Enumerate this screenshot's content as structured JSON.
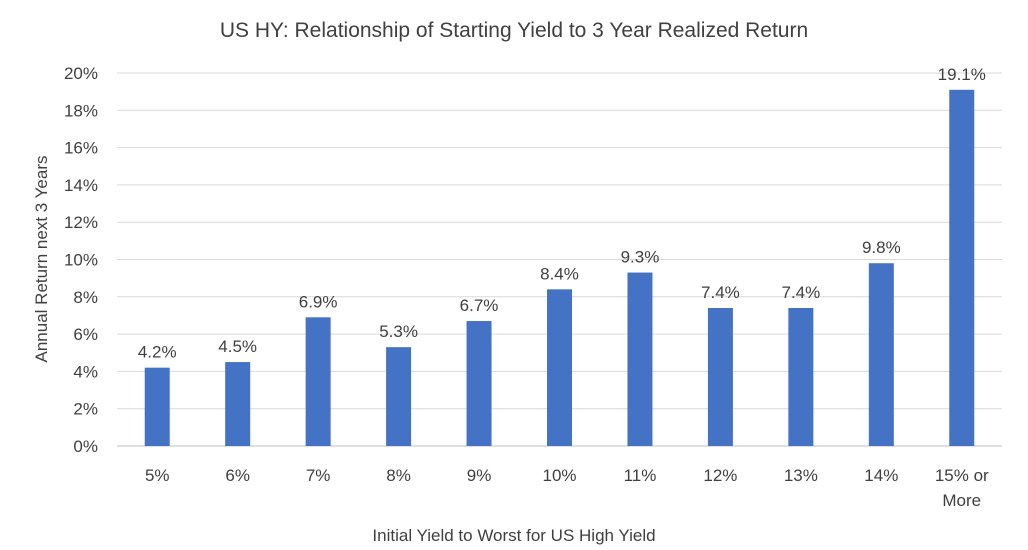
{
  "chart_data": {
    "type": "bar",
    "title": "US HY: Relationship of Starting Yield to 3 Year Realized Return",
    "xlabel": "Initial Yield to Worst for US High Yield",
    "ylabel": "Annual Return next 3 Years",
    "categories": [
      "5%",
      "6%",
      "7%",
      "8%",
      "9%",
      "10%",
      "11%",
      "12%",
      "13%",
      "14%",
      "15% or More"
    ],
    "values": [
      4.2,
      4.5,
      6.9,
      5.3,
      6.7,
      8.4,
      9.3,
      7.4,
      7.4,
      9.8,
      19.1
    ],
    "data_labels": [
      "4.2%",
      "4.5%",
      "6.9%",
      "5.3%",
      "6.7%",
      "8.4%",
      "9.3%",
      "7.4%",
      "7.4%",
      "9.8%",
      "19.1%"
    ],
    "yticks": [
      "0%",
      "2%",
      "4%",
      "6%",
      "8%",
      "10%",
      "12%",
      "14%",
      "16%",
      "18%",
      "20%"
    ],
    "ylim": [
      0,
      20
    ],
    "grid": true,
    "legend": "none",
    "bar_color": "#4472c4"
  }
}
